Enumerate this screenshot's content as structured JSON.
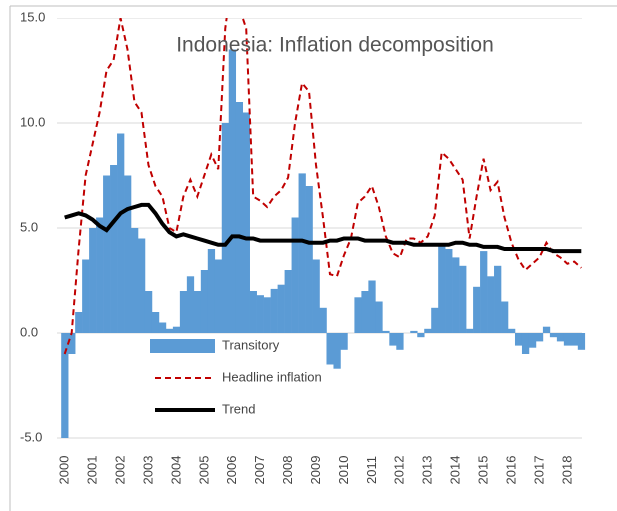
{
  "chart_data": {
    "type": "bar-line",
    "title": "Indonesia: Inflation decomposition",
    "xlim": [
      1999.85,
      2018.65
    ],
    "xticks": [
      2000,
      2001,
      2002,
      2003,
      2004,
      2005,
      2006,
      2007,
      2008,
      2009,
      2010,
      2011,
      2012,
      2013,
      2014,
      2015,
      2016,
      2017,
      2018
    ],
    "ylim": [
      -5,
      15
    ],
    "yticks": [
      {
        "value": -5,
        "label": "-5.0"
      },
      {
        "value": 0,
        "label": "0.0"
      },
      {
        "value": 5,
        "label": "5.0"
      },
      {
        "value": 10,
        "label": "10.0"
      },
      {
        "value": 15,
        "label": "15.0"
      }
    ],
    "grid": true,
    "x": [
      2000,
      2000.25,
      2000.5,
      2000.75,
      2001,
      2001.25,
      2001.5,
      2001.75,
      2002,
      2002.25,
      2002.5,
      2002.75,
      2003,
      2003.25,
      2003.5,
      2003.75,
      2004,
      2004.25,
      2004.5,
      2004.75,
      2005,
      2005.25,
      2005.5,
      2005.75,
      2006,
      2006.25,
      2006.5,
      2006.75,
      2007,
      2007.25,
      2007.5,
      2007.75,
      2008,
      2008.25,
      2008.5,
      2008.75,
      2009,
      2009.25,
      2009.5,
      2009.75,
      2010,
      2010.25,
      2010.5,
      2010.75,
      2011,
      2011.25,
      2011.5,
      2011.75,
      2012,
      2012.25,
      2012.5,
      2012.75,
      2013,
      2013.25,
      2013.5,
      2013.75,
      2014,
      2014.25,
      2014.5,
      2014.75,
      2015,
      2015.25,
      2015.5,
      2015.75,
      2016,
      2016.25,
      2016.5,
      2016.75,
      2017,
      2017.25,
      2017.5,
      2017.75,
      2018,
      2018.25,
      2018.5
    ],
    "series": [
      {
        "name": "Transitory",
        "kind": "bar",
        "color": "#5b9bd5",
        "values": [
          -5,
          -1,
          1,
          3.5,
          5,
          5.5,
          7.5,
          8,
          9.5,
          7.5,
          5,
          4.5,
          2,
          1,
          0.5,
          0.2,
          0.3,
          2,
          2.7,
          2,
          3,
          4,
          3.5,
          10,
          13.5,
          11,
          10.5,
          2,
          1.8,
          1.7,
          2.1,
          2.3,
          3,
          5.5,
          7.6,
          7,
          3.5,
          1.2,
          -1.5,
          -1.7,
          -0.8,
          0,
          1.7,
          2,
          2.5,
          1.5,
          0.1,
          -0.6,
          -0.8,
          0,
          0.1,
          -0.2,
          0.2,
          1.2,
          4.2,
          4,
          3.6,
          3.2,
          0.2,
          2.2,
          3.9,
          2.7,
          3.2,
          1.5,
          0.2,
          -0.6,
          -1,
          -0.7,
          -0.4,
          0.3,
          -0.2,
          -0.4,
          -0.6,
          -0.6,
          -0.8
        ]
      },
      {
        "name": "Headline inflation",
        "kind": "dashed-line",
        "color": "#c00000",
        "values": [
          -1,
          0,
          4,
          7.5,
          9,
          10.5,
          12.5,
          13,
          15,
          13.5,
          11,
          10.5,
          8,
          7,
          6.5,
          5,
          4.8,
          6.5,
          7.3,
          6.5,
          7.5,
          8.5,
          7.8,
          14.5,
          17,
          15.5,
          14.5,
          6.5,
          6.3,
          6,
          6.5,
          6.8,
          7.4,
          10,
          11.9,
          11.5,
          8,
          5.5,
          2.8,
          2.7,
          3.7,
          4.5,
          6.2,
          6.5,
          7,
          6,
          4.6,
          3.8,
          3.6,
          4.5,
          4.5,
          4.3,
          4.6,
          5.6,
          8.6,
          8.3,
          7.8,
          7.3,
          4.5,
          6.5,
          8.3,
          6.8,
          7.2,
          5.5,
          4.3,
          3.5,
          3,
          3.3,
          3.6,
          4.3,
          3.8,
          3.6,
          3.3,
          3.4,
          3.1
        ]
      },
      {
        "name": "Trend",
        "kind": "line",
        "color": "#000000",
        "values": [
          5.5,
          5.6,
          5.7,
          5.6,
          5.4,
          5.1,
          4.9,
          5.3,
          5.7,
          5.9,
          6,
          6.1,
          6.1,
          5.7,
          5.2,
          4.8,
          4.6,
          4.7,
          4.6,
          4.5,
          4.4,
          4.3,
          4.2,
          4.2,
          4.6,
          4.6,
          4.5,
          4.5,
          4.4,
          4.4,
          4.4,
          4.4,
          4.4,
          4.4,
          4.4,
          4.3,
          4.3,
          4.3,
          4.4,
          4.4,
          4.5,
          4.5,
          4.5,
          4.4,
          4.4,
          4.4,
          4.4,
          4.3,
          4.3,
          4.3,
          4.2,
          4.2,
          4.2,
          4.2,
          4.2,
          4.2,
          4.3,
          4.3,
          4.2,
          4.2,
          4.1,
          4.1,
          4.1,
          4,
          4,
          4,
          4,
          4,
          4,
          4,
          3.9,
          3.9,
          3.9,
          3.9,
          3.9
        ]
      }
    ]
  }
}
